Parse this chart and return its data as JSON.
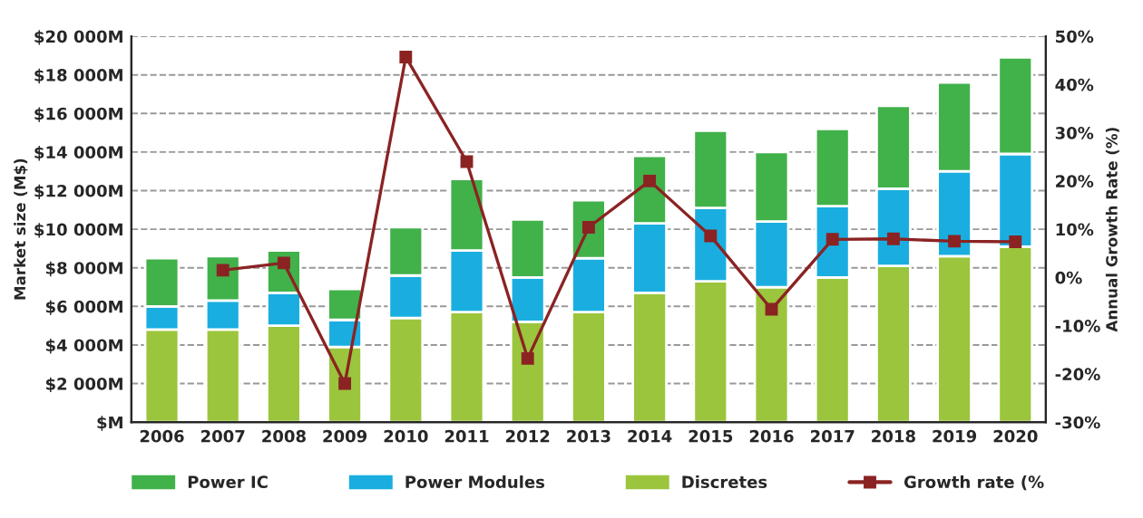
{
  "chart_data": {
    "type": "bar",
    "stacked": true,
    "ylabel": "Market size (M$)",
    "y2label": "Annual Growth Rate (%)",
    "categories": [
      "2006",
      "2007",
      "2008",
      "2009",
      "2010",
      "2011",
      "2012",
      "2013",
      "2014",
      "2015",
      "2016",
      "2017",
      "2018",
      "2019",
      "2020"
    ],
    "series": [
      {
        "name": "Discretes",
        "color": "#9bc53d",
        "values": [
          4800,
          4800,
          5000,
          3900,
          5400,
          5700,
          5200,
          5700,
          6700,
          7300,
          7000,
          7500,
          8100,
          8600,
          9100
        ]
      },
      {
        "name": "Power Modules",
        "color": "#1aaee0",
        "values": [
          1200,
          1500,
          1700,
          1400,
          2200,
          3200,
          2300,
          2800,
          3600,
          3800,
          3400,
          3700,
          4000,
          4400,
          4800
        ]
      },
      {
        "name": "Power IC",
        "color": "#41b14a",
        "values": [
          2500,
          2300,
          2200,
          1600,
          2500,
          3700,
          3000,
          3000,
          3500,
          4000,
          3600,
          4000,
          4300,
          4600,
          5000
        ]
      },
      {
        "name": "Growth rate (%",
        "type": "line",
        "axis": "y2",
        "color": "#8b2323",
        "marker": "square",
        "values": [
          null,
          1.5,
          3,
          -22,
          45.7,
          24,
          -16.8,
          10.4,
          20,
          8.6,
          -6.6,
          7.9,
          8,
          7.5,
          7.4
        ]
      }
    ],
    "ylim": [
      0,
      20000
    ],
    "yticks": [
      {
        "value": 0,
        "label": "$M"
      },
      {
        "value": 2000,
        "label": "$2 000M"
      },
      {
        "value": 4000,
        "label": "$4 000M"
      },
      {
        "value": 6000,
        "label": "$6 000M"
      },
      {
        "value": 8000,
        "label": "$8 000M"
      },
      {
        "value": 10000,
        "label": "$10 000M"
      },
      {
        "value": 12000,
        "label": "$12 000M"
      },
      {
        "value": 14000,
        "label": "$14 000M"
      },
      {
        "value": 16000,
        "label": "$16 000M"
      },
      {
        "value": 18000,
        "label": "$18 000M"
      },
      {
        "value": 20000,
        "label": "$20 000M"
      }
    ],
    "y2lim": [
      -30,
      50
    ],
    "y2ticks": [
      {
        "value": -30,
        "label": "-30%"
      },
      {
        "value": -20,
        "label": "-20%"
      },
      {
        "value": -10,
        "label": "-10%"
      },
      {
        "value": 0,
        "label": "0%"
      },
      {
        "value": 10,
        "label": "10%"
      },
      {
        "value": 20,
        "label": "20%"
      },
      {
        "value": 30,
        "label": "30%"
      },
      {
        "value": 40,
        "label": "40%"
      },
      {
        "value": 50,
        "label": "50%"
      }
    ],
    "grid": "y",
    "legend": "bottom"
  }
}
